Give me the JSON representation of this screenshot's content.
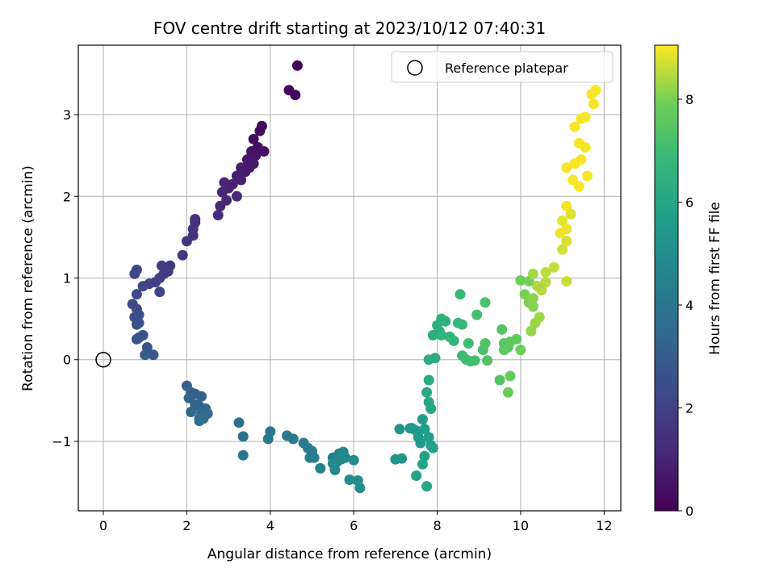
{
  "chart_data": {
    "type": "scatter",
    "title": "FOV centre drift starting at 2023/10/12 07:40:31",
    "xlabel": "Angular distance from reference (arcmin)",
    "ylabel": "Rotation from reference (arcmin)",
    "colorbar_label": "Hours from first FF file",
    "xlim": [
      -0.6,
      12.4
    ],
    "ylim": [
      -1.85,
      3.85
    ],
    "clim": [
      0,
      9.05
    ],
    "x_ticks": [
      0,
      2,
      4,
      6,
      8,
      10,
      12
    ],
    "y_ticks": [
      -1,
      0,
      1,
      2,
      3
    ],
    "colorbar_ticks": [
      0,
      2,
      4,
      6,
      8
    ],
    "grid": true,
    "colormap": "viridis",
    "legend": {
      "placement": "top-right",
      "entries": [
        {
          "label": "Reference platepar",
          "marker": "open-circle"
        }
      ]
    },
    "reference_point": {
      "x": 0,
      "y": 0
    },
    "points": [
      [
        4.65,
        3.6,
        0.05
      ],
      [
        4.45,
        3.3,
        0.1
      ],
      [
        4.6,
        3.24,
        0.15
      ],
      [
        3.8,
        2.86,
        0.25
      ],
      [
        3.75,
        2.8,
        0.3
      ],
      [
        3.6,
        2.7,
        0.35
      ],
      [
        3.7,
        2.6,
        0.4
      ],
      [
        3.85,
        2.55,
        0.45
      ],
      [
        3.65,
        2.5,
        0.5
      ],
      [
        3.55,
        2.55,
        0.55
      ],
      [
        3.45,
        2.45,
        0.6
      ],
      [
        3.5,
        2.35,
        0.65
      ],
      [
        3.6,
        2.4,
        0.7
      ],
      [
        3.4,
        2.3,
        0.75
      ],
      [
        3.3,
        2.35,
        0.8
      ],
      [
        3.2,
        2.25,
        0.85
      ],
      [
        3.3,
        2.2,
        0.9
      ],
      [
        3.1,
        2.15,
        0.95
      ],
      [
        3.0,
        2.1,
        1.0
      ],
      [
        2.9,
        2.17,
        1.05
      ],
      [
        2.85,
        2.05,
        1.1
      ],
      [
        3.2,
        2.0,
        1.15
      ],
      [
        2.95,
        1.95,
        1.2
      ],
      [
        2.8,
        1.88,
        1.25
      ],
      [
        2.75,
        1.77,
        1.3
      ],
      [
        2.2,
        1.72,
        1.4
      ],
      [
        2.2,
        1.68,
        1.45
      ],
      [
        2.15,
        1.6,
        1.5
      ],
      [
        2.15,
        1.52,
        1.55
      ],
      [
        2.0,
        1.45,
        1.6
      ],
      [
        1.9,
        1.28,
        1.65
      ],
      [
        1.6,
        1.15,
        1.7
      ],
      [
        1.55,
        1.08,
        1.75
      ],
      [
        1.4,
        1.15,
        1.8
      ],
      [
        1.45,
        1.05,
        1.85
      ],
      [
        1.35,
        1.0,
        1.9
      ],
      [
        1.25,
        0.95,
        1.95
      ],
      [
        1.1,
        0.93,
        2.0
      ],
      [
        1.35,
        0.83,
        2.05
      ],
      [
        0.8,
        1.1,
        2.1
      ],
      [
        0.75,
        1.05,
        2.15
      ],
      [
        0.95,
        0.9,
        2.2
      ],
      [
        0.8,
        0.8,
        2.25
      ],
      [
        0.7,
        0.68,
        2.3
      ],
      [
        0.8,
        0.62,
        2.35
      ],
      [
        0.85,
        0.55,
        2.4
      ],
      [
        0.75,
        0.52,
        2.45
      ],
      [
        0.85,
        0.45,
        2.5
      ],
      [
        0.8,
        0.43,
        2.55
      ],
      [
        0.95,
        0.3,
        2.6
      ],
      [
        0.85,
        0.27,
        2.65
      ],
      [
        0.8,
        0.25,
        2.7
      ],
      [
        1.05,
        0.15,
        2.75
      ],
      [
        1.2,
        0.06,
        2.8
      ],
      [
        1.0,
        0.06,
        2.85
      ],
      [
        2.0,
        -0.32,
        3.0
      ],
      [
        2.1,
        -0.4,
        3.05
      ],
      [
        2.2,
        -0.42,
        3.1
      ],
      [
        2.35,
        -0.45,
        3.15
      ],
      [
        2.05,
        -0.47,
        3.2
      ],
      [
        2.2,
        -0.55,
        3.25
      ],
      [
        2.3,
        -0.57,
        3.3
      ],
      [
        2.45,
        -0.6,
        3.35
      ],
      [
        2.1,
        -0.64,
        3.4
      ],
      [
        2.35,
        -0.65,
        3.45
      ],
      [
        2.5,
        -0.66,
        3.5
      ],
      [
        2.3,
        -0.72,
        3.55
      ],
      [
        2.3,
        -0.75,
        3.6
      ],
      [
        2.4,
        -0.72,
        3.65
      ],
      [
        3.25,
        -0.77,
        3.8
      ],
      [
        3.35,
        -0.94,
        3.85
      ],
      [
        3.35,
        -1.17,
        3.9
      ],
      [
        4.0,
        -0.88,
        4.0
      ],
      [
        3.95,
        -0.97,
        4.05
      ],
      [
        4.4,
        -0.93,
        4.1
      ],
      [
        4.55,
        -0.97,
        4.15
      ],
      [
        4.8,
        -1.02,
        4.2
      ],
      [
        4.9,
        -1.08,
        4.25
      ],
      [
        5.0,
        -1.12,
        4.3
      ],
      [
        4.95,
        -1.2,
        4.35
      ],
      [
        5.05,
        -1.2,
        4.4
      ],
      [
        5.2,
        -1.33,
        4.45
      ],
      [
        5.5,
        -1.2,
        4.5
      ],
      [
        5.6,
        -1.25,
        4.55
      ],
      [
        5.65,
        -1.15,
        4.6
      ],
      [
        5.75,
        -1.13,
        4.65
      ],
      [
        5.8,
        -1.2,
        4.7
      ],
      [
        5.5,
        -1.27,
        4.75
      ],
      [
        5.55,
        -1.35,
        4.8
      ],
      [
        5.7,
        -1.22,
        4.85
      ],
      [
        6.0,
        -1.23,
        4.9
      ],
      [
        5.9,
        -1.47,
        4.95
      ],
      [
        6.1,
        -1.48,
        5.0
      ],
      [
        6.15,
        -1.57,
        5.05
      ],
      [
        7.0,
        -1.22,
        5.2
      ],
      [
        7.15,
        -1.21,
        5.25
      ],
      [
        7.1,
        -0.85,
        5.3
      ],
      [
        7.35,
        -0.84,
        5.35
      ],
      [
        7.4,
        -0.84,
        5.4
      ],
      [
        7.5,
        -0.87,
        5.45
      ],
      [
        7.55,
        -0.95,
        5.5
      ],
      [
        7.6,
        -1.02,
        5.55
      ],
      [
        7.65,
        -0.73,
        5.6
      ],
      [
        7.7,
        -0.85,
        5.65
      ],
      [
        7.8,
        -0.95,
        5.7
      ],
      [
        7.85,
        -1.05,
        5.75
      ],
      [
        7.9,
        -1.08,
        5.8
      ],
      [
        7.7,
        -1.18,
        5.85
      ],
      [
        7.65,
        -1.28,
        5.9
      ],
      [
        7.5,
        -1.42,
        5.95
      ],
      [
        7.75,
        -1.55,
        6.0
      ],
      [
        7.85,
        -0.6,
        6.05
      ],
      [
        7.8,
        -0.52,
        6.1
      ],
      [
        7.75,
        -0.4,
        6.15
      ],
      [
        7.8,
        -0.25,
        6.2
      ],
      [
        7.8,
        0.0,
        6.25
      ],
      [
        7.95,
        0.02,
        6.3
      ],
      [
        7.9,
        0.3,
        6.35
      ],
      [
        8.05,
        0.35,
        6.4
      ],
      [
        8.0,
        0.42,
        6.45
      ],
      [
        8.1,
        0.5,
        6.5
      ],
      [
        8.2,
        0.47,
        6.55
      ],
      [
        8.1,
        0.3,
        6.6
      ],
      [
        8.3,
        0.28,
        6.65
      ],
      [
        8.4,
        0.23,
        6.7
      ],
      [
        8.5,
        0.45,
        6.75
      ],
      [
        8.6,
        0.43,
        6.8
      ],
      [
        8.55,
        0.8,
        6.85
      ],
      [
        8.6,
        0.05,
        6.9
      ],
      [
        8.7,
        0.0,
        6.95
      ],
      [
        8.75,
        0.2,
        7.0
      ],
      [
        8.8,
        -0.02,
        7.05
      ],
      [
        8.9,
        -0.01,
        7.1
      ],
      [
        8.95,
        0.55,
        7.15
      ],
      [
        9.15,
        0.7,
        7.2
      ],
      [
        9.1,
        0.12,
        7.25
      ],
      [
        9.15,
        0.2,
        7.3
      ],
      [
        9.2,
        -0.01,
        7.35
      ],
      [
        9.5,
        -0.25,
        7.4
      ],
      [
        9.55,
        0.37,
        7.45
      ],
      [
        9.6,
        0.2,
        7.5
      ],
      [
        9.7,
        0.15,
        7.55
      ],
      [
        9.75,
        0.22,
        7.6
      ],
      [
        9.6,
        0.12,
        7.65
      ],
      [
        9.9,
        0.25,
        7.7
      ],
      [
        9.75,
        -0.2,
        7.75
      ],
      [
        9.7,
        -0.4,
        7.8
      ],
      [
        10.0,
        0.12,
        7.85
      ],
      [
        10.0,
        0.97,
        7.9
      ],
      [
        10.2,
        0.96,
        7.95
      ],
      [
        10.1,
        0.8,
        8.0
      ],
      [
        10.2,
        0.7,
        8.05
      ],
      [
        10.3,
        0.65,
        8.1
      ],
      [
        10.3,
        0.75,
        8.15
      ],
      [
        10.25,
        0.35,
        8.2
      ],
      [
        10.35,
        0.45,
        8.25
      ],
      [
        10.45,
        0.52,
        8.3
      ],
      [
        10.3,
        1.05,
        8.35
      ],
      [
        10.4,
        0.9,
        8.4
      ],
      [
        10.5,
        0.85,
        8.45
      ],
      [
        10.6,
        0.95,
        8.5
      ],
      [
        10.6,
        1.07,
        8.55
      ],
      [
        10.8,
        1.13,
        8.6
      ],
      [
        11.1,
        0.96,
        8.65
      ],
      [
        11.0,
        1.35,
        8.7
      ],
      [
        11.1,
        1.45,
        8.75
      ],
      [
        11.2,
        1.78,
        8.8
      ],
      [
        11.0,
        1.7,
        8.85
      ],
      [
        11.1,
        1.6,
        8.9
      ],
      [
        10.95,
        1.55,
        8.95
      ],
      [
        11.1,
        1.88,
        9.0
      ],
      [
        11.1,
        2.35,
        9.0
      ],
      [
        11.25,
        2.2,
        9.0
      ],
      [
        11.4,
        2.12,
        9.0
      ],
      [
        11.3,
        2.4,
        9.0
      ],
      [
        11.45,
        2.45,
        9.0
      ],
      [
        11.6,
        2.25,
        9.0
      ],
      [
        11.4,
        2.65,
        9.0
      ],
      [
        11.55,
        2.6,
        9.0
      ],
      [
        11.3,
        2.85,
        9.0
      ],
      [
        11.45,
        2.95,
        9.0
      ],
      [
        11.55,
        2.97,
        9.0
      ],
      [
        11.7,
        3.25,
        9.0
      ],
      [
        11.8,
        3.3,
        9.0
      ],
      [
        11.75,
        3.13,
        9.0
      ]
    ]
  }
}
